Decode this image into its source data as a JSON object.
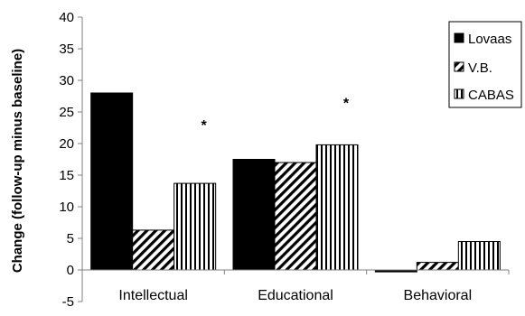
{
  "chart_data": {
    "type": "bar",
    "title": "",
    "xlabel": "",
    "ylabel": "Change (follow-up minus baseline)",
    "ylim": [
      -5,
      40
    ],
    "yticks": [
      -5,
      0,
      5,
      10,
      15,
      20,
      25,
      30,
      35,
      40
    ],
    "grid": false,
    "legend_position": "top-right",
    "categories": [
      "Intellectual",
      "Educational",
      "Behavioral"
    ],
    "series": [
      {
        "name": "Lovaas",
        "pattern": "solid",
        "color": "#000000",
        "values": [
          28.0,
          17.5,
          -0.3
        ]
      },
      {
        "name": "V.B.",
        "pattern": "diagonal-hatch",
        "color": "#000000",
        "values": [
          6.3,
          17.0,
          1.2
        ]
      },
      {
        "name": "CABAS",
        "pattern": "vertical-stripes",
        "color": "#000000",
        "values": [
          13.7,
          19.8,
          4.5
        ]
      }
    ],
    "annotations": [
      {
        "text": "*",
        "category": "Intellectual",
        "y": 23
      },
      {
        "text": "*",
        "category": "Educational",
        "y": 26.5
      }
    ]
  }
}
